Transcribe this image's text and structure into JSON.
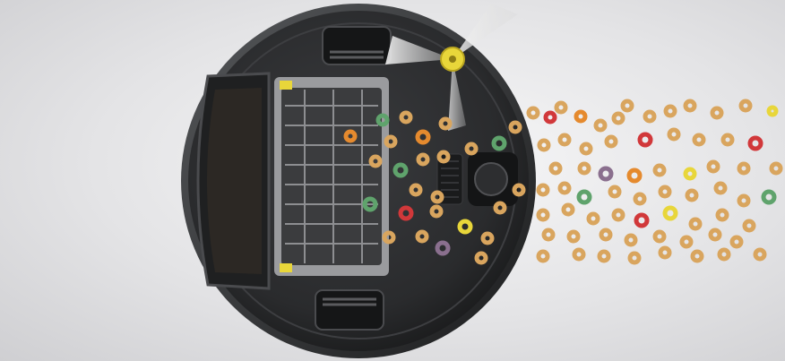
{
  "photo": {
    "subject": "robot-vacuum-underside-with-cereal",
    "colors": {
      "background": "#e9e9eb",
      "robot_body": "#2b2c2e",
      "cereal_tan": "#d9a55e",
      "cereal_red": "#d1383a",
      "cereal_green": "#5fa36c",
      "cereal_purple": "#8a6f8e",
      "cereal_orange": "#e58a2e",
      "brush_yellow": "#e8d63a"
    }
  }
}
